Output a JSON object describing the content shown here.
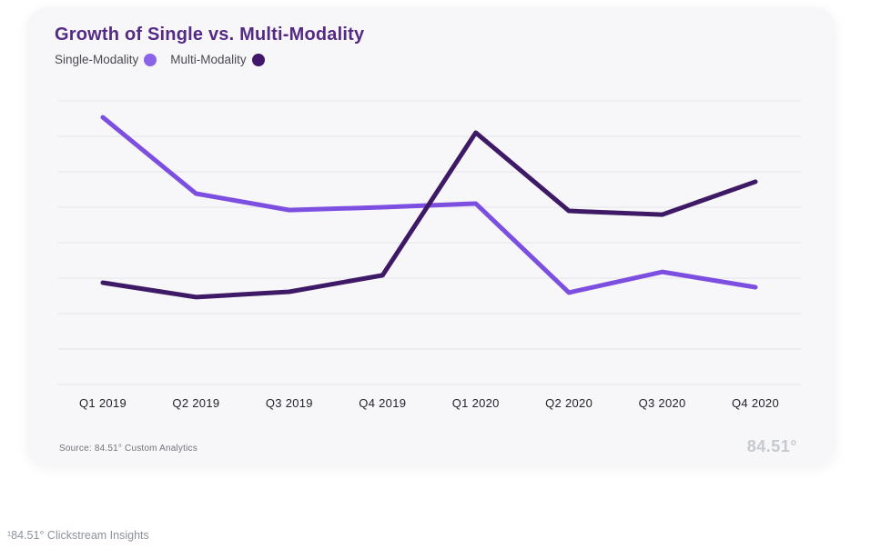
{
  "page": {
    "footnote": "¹84.51° Clickstream Insights"
  },
  "card": {
    "title": "Growth of Single vs. Multi-Modality",
    "legend": [
      {
        "label": "Single-Modality",
        "color": "#8b63e9"
      },
      {
        "label": "Multi-Modality",
        "color": "#42176b"
      }
    ],
    "source": "Source: 84.51° Custom Analytics",
    "logo": "84.51°"
  },
  "chart_data": {
    "type": "line",
    "title": "Growth of Single vs. Multi-Modality",
    "categories": [
      "Q1 2019",
      "Q2 2019",
      "Q3 2019",
      "Q4 2019",
      "Q1 2020",
      "Q2 2020",
      "Q3 2020",
      "Q4 2020"
    ],
    "series": [
      {
        "name": "Single-Modality",
        "color": "#7c4fe0",
        "values": [
          94.2,
          67.3,
          61.5,
          62.5,
          63.8,
          32.4,
          39.7,
          34.3
        ]
      },
      {
        "name": "Multi-Modality",
        "color": "#3e1965",
        "values": [
          35.9,
          30.8,
          32.7,
          38.5,
          88.8,
          61.2,
          59.9,
          71.5
        ]
      }
    ],
    "xlabel": "",
    "ylabel": "",
    "ylim": [
      0,
      100
    ],
    "y_axis_labels_visible": false,
    "grid": true,
    "gridline_count": 9,
    "gridline_color": "#e9e9ed",
    "legend_position": "top-left"
  }
}
